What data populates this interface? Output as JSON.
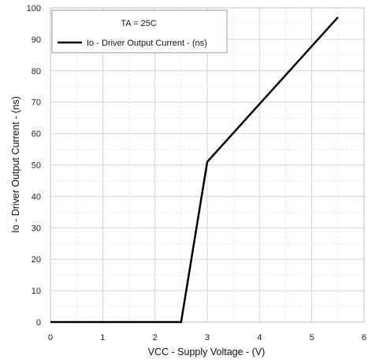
{
  "chart_data": {
    "type": "line",
    "xlabel": "VCC - Supply Voltage - (V)",
    "ylabel": "Io - Driver Output Current - (ns)",
    "xlim": [
      0,
      6
    ],
    "ylim": [
      0,
      100
    ],
    "x_ticks": [
      0,
      1,
      2,
      3,
      4,
      5,
      6
    ],
    "y_ticks": [
      0,
      10,
      20,
      30,
      40,
      50,
      60,
      70,
      80,
      90,
      100
    ],
    "grid": true,
    "legend_position": "top-left",
    "legend_header": "TA = 25C",
    "series": [
      {
        "name": "Io - Driver Output Current - (ns)",
        "color": "#000000",
        "x": [
          0,
          2.5,
          3.0,
          5.5
        ],
        "y": [
          0,
          0,
          51,
          97
        ]
      }
    ]
  }
}
